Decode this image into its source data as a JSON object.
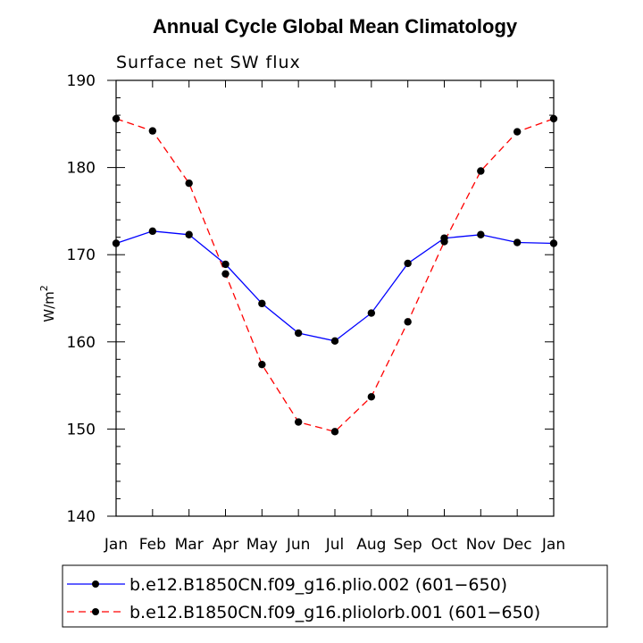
{
  "chart_data": {
    "type": "line",
    "title": "Annual Cycle Global Mean Climatology",
    "subtitle": "Surface net SW flux",
    "xlabel": "",
    "ylabel": "W/m",
    "ylabel_superscript": "2",
    "categories": [
      "Jan",
      "Feb",
      "Mar",
      "Apr",
      "May",
      "Jun",
      "Jul",
      "Aug",
      "Sep",
      "Oct",
      "Nov",
      "Dec",
      "Jan"
    ],
    "ylim": [
      140,
      190
    ],
    "yticks": [
      140,
      150,
      160,
      170,
      180,
      190
    ],
    "grid": false,
    "legend_position": "bottom",
    "series": [
      {
        "name": "b.e12.B1850CN.f09_g16.plio.002 (601−650)",
        "color": "#0000ff",
        "style": "solid",
        "values": [
          171.3,
          172.7,
          172.3,
          168.9,
          164.4,
          161.0,
          160.1,
          163.3,
          169.0,
          171.9,
          172.3,
          171.4,
          171.3
        ]
      },
      {
        "name": "b.e12.B1850CN.f09_g16.pliolorb.001 (601−650)",
        "color": "#ff0000",
        "style": "dashed",
        "values": [
          185.6,
          184.2,
          178.2,
          167.8,
          157.4,
          150.8,
          149.7,
          153.7,
          162.3,
          171.5,
          179.6,
          184.1,
          185.6
        ]
      }
    ]
  }
}
